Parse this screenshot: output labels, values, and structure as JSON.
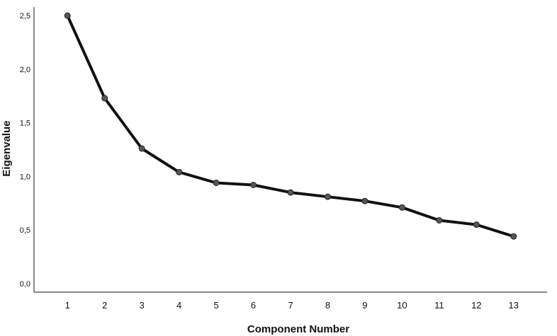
{
  "chart_data": {
    "type": "line",
    "title": "",
    "xlabel": "Component Number",
    "ylabel": "Eigenvalue",
    "x": [
      1,
      2,
      3,
      4,
      5,
      6,
      7,
      8,
      9,
      10,
      11,
      12,
      13
    ],
    "x_tick_labels": [
      "1",
      "2",
      "3",
      "4",
      "5",
      "6",
      "7",
      "8",
      "9",
      "10",
      "11",
      "12",
      "13"
    ],
    "y_tick_values": [
      0,
      0.5,
      1.0,
      1.5,
      2.0,
      2.5
    ],
    "y_tick_labels": [
      "0,0",
      "0,5",
      "1,0",
      "1,5",
      "2,0",
      "2,5"
    ],
    "ylim": [
      -0.08,
      2.58
    ],
    "xlim": [
      0.1,
      13.9
    ],
    "grid": false,
    "series": [
      {
        "values": [
          2.5,
          1.73,
          1.26,
          1.04,
          0.94,
          0.92,
          0.85,
          0.81,
          0.77,
          0.71,
          0.59,
          0.55,
          0.44
        ]
      }
    ],
    "line_color": "#111111",
    "marker_color": "#555555"
  }
}
